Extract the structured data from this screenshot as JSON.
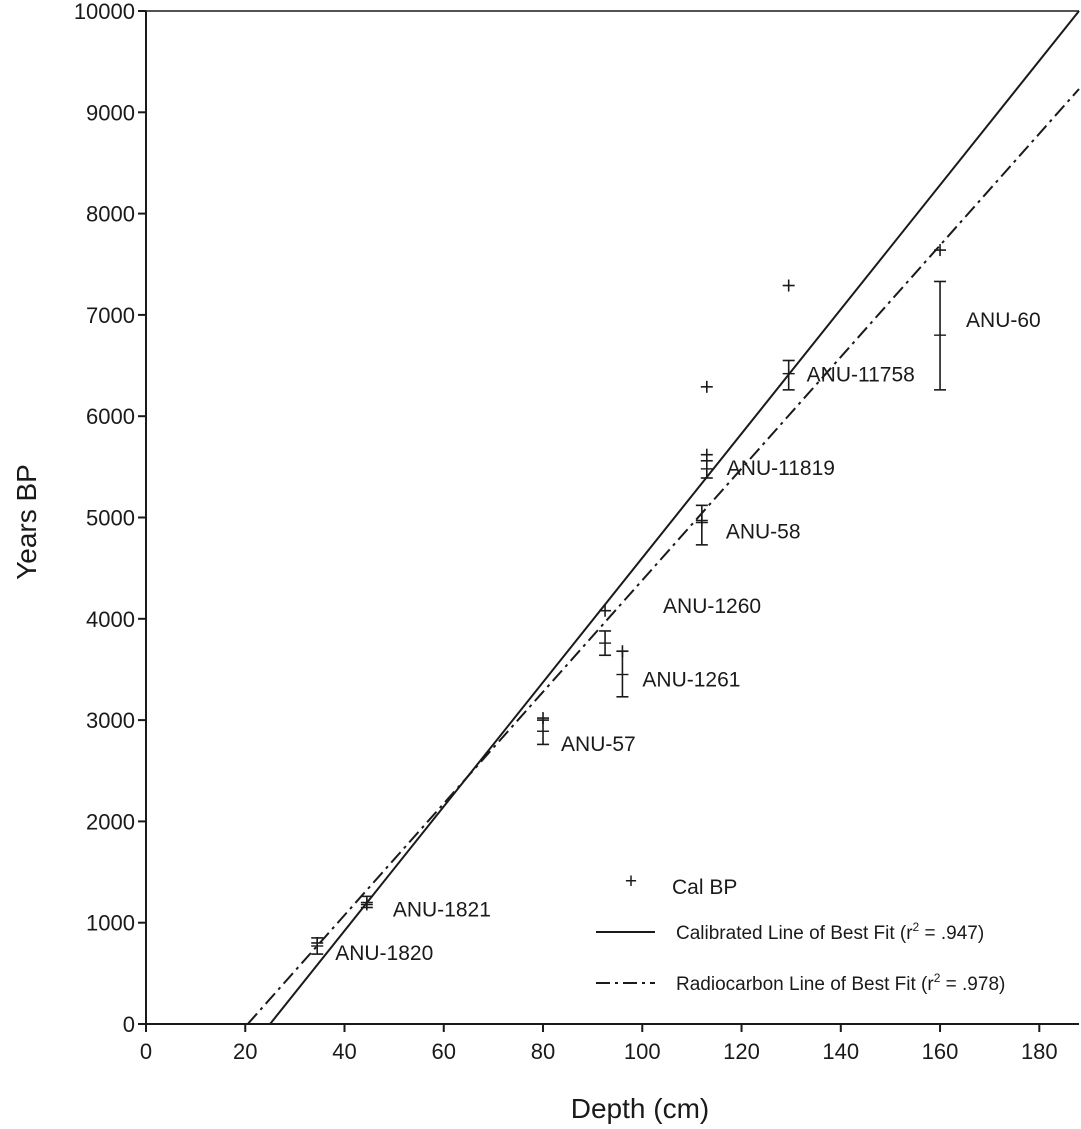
{
  "chart_data": {
    "type": "scatter",
    "xlabel": "Depth (cm)",
    "ylabel": "Years BP",
    "xlim": [
      0,
      188
    ],
    "ylim": [
      0,
      10000
    ],
    "xticks": [
      0,
      20,
      40,
      60,
      80,
      100,
      120,
      140,
      160,
      180
    ],
    "yticks": [
      0,
      1000,
      2000,
      3000,
      4000,
      5000,
      6000,
      7000,
      8000,
      9000,
      10000
    ],
    "grid": false,
    "legend_position": "bottom-right",
    "legend": {
      "cal_bp": "Cal BP",
      "calibrated": "Calibrated Line of Best Fit (r",
      "calibrated_r2": ".947)",
      "radiocarbon": "Radiocarbon Line of Best Fit (r",
      "radiocarbon_r2": ".978)",
      "superscript": "2",
      "equals": " = "
    },
    "dates": [
      {
        "label": "ANU-1820",
        "depth": 34.5,
        "age": 770,
        "low": 690,
        "high": 850,
        "cal": 800
      },
      {
        "label": "ANU-1821",
        "depth": 44.5,
        "age": 1200,
        "low": 1150,
        "high": 1260,
        "cal": 1180
      },
      {
        "label": "ANU-57",
        "depth": 80,
        "age": 2890,
        "low": 2760,
        "high": 3000,
        "cal": 3020
      },
      {
        "label": "ANU-1260",
        "depth": 92.5,
        "age": 3760,
        "low": 3640,
        "high": 3880,
        "cal": 4080
      },
      {
        "label": "ANU-1261",
        "depth": 96,
        "age": 3450,
        "low": 3230,
        "high": 3680,
        "cal": 3680
      },
      {
        "label": "ANU-58",
        "depth": 112,
        "age": 4950,
        "low": 4730,
        "high": 5120,
        "cal": 4970
      },
      {
        "label": "ANU-11819",
        "depth": 113,
        "age": 5480,
        "low": 5390,
        "high": 5560,
        "cal": 5620
      },
      {
        "label": "ANU-11758",
        "depth": 129.5,
        "age": 6420,
        "low": 6260,
        "high": 6550,
        "cal": 7290
      },
      {
        "label": "ANU-60",
        "depth": 160,
        "age": 6800,
        "low": 6260,
        "high": 7330,
        "cal": 7640
      }
    ],
    "extra_cal_points": [
      {
        "depth": 113,
        "cal": 6290
      }
    ],
    "series": [
      {
        "name": "Calibrated Line of Best Fit",
        "style": "solid",
        "points": [
          [
            25,
            0
          ],
          [
            188,
            10000
          ]
        ]
      },
      {
        "name": "Radiocarbon Line of Best Fit",
        "style": "dash-dot",
        "points": [
          [
            20.5,
            0
          ],
          [
            188,
            9230
          ]
        ]
      }
    ]
  }
}
